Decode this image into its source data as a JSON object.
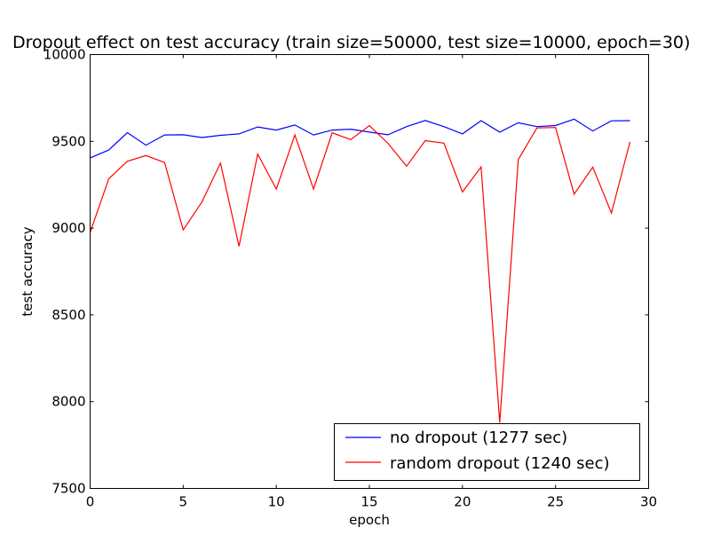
{
  "chart_data": {
    "type": "line",
    "title": "Dropout effect on test accuracy (train size=50000, test size=10000, epoch=30)",
    "xlabel": "epoch",
    "ylabel": "test accuracy",
    "xlim": [
      0,
      30
    ],
    "ylim": [
      7500,
      10000
    ],
    "xticks": [
      0,
      5,
      10,
      15,
      20,
      25,
      30
    ],
    "xtick_labels": [
      "0",
      "5",
      "10",
      "15",
      "20",
      "25",
      "30"
    ],
    "yticks": [
      7500,
      8000,
      8500,
      9000,
      9500,
      10000
    ],
    "ytick_labels": [
      "7500",
      "8000",
      "8500",
      "9000",
      "9500",
      "10000"
    ],
    "grid": false,
    "legend_position": "lower-right",
    "x": [
      0,
      1,
      2,
      3,
      4,
      5,
      6,
      7,
      8,
      9,
      10,
      11,
      12,
      13,
      14,
      15,
      16,
      17,
      18,
      19,
      20,
      21,
      22,
      23,
      24,
      25,
      26,
      27,
      28,
      29
    ],
    "series": [
      {
        "name": "no dropout (1277 sec)",
        "color": "#0000ff",
        "values": [
          9405,
          9450,
          9550,
          9478,
          9537,
          9538,
          9522,
          9535,
          9543,
          9583,
          9565,
          9594,
          9537,
          9565,
          9570,
          9553,
          9538,
          9585,
          9620,
          9585,
          9543,
          9619,
          9553,
          9607,
          9585,
          9591,
          9628,
          9560,
          9618,
          9619
        ]
      },
      {
        "name": "random dropout (1240 sec)",
        "color": "#ff0000",
        "values": [
          8975,
          9285,
          9385,
          9418,
          9378,
          8990,
          9150,
          9375,
          8895,
          9427,
          9225,
          9537,
          9225,
          9549,
          9510,
          9590,
          9488,
          9357,
          9504,
          9490,
          9208,
          9353,
          7880,
          9395,
          9577,
          9580,
          9196,
          9351,
          9087,
          9497
        ]
      }
    ]
  }
}
